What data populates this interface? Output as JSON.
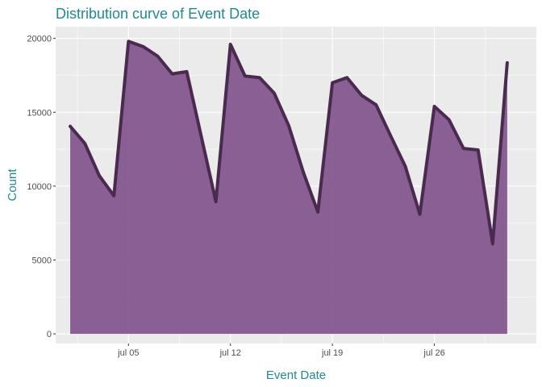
{
  "chart_data": {
    "type": "area",
    "title": "Distribution curve of Event Date",
    "xlabel": "Event Date",
    "ylabel": "Count",
    "x_tick_labels": [
      {
        "date": "2020-07-05",
        "label": "jul 05"
      },
      {
        "date": "2020-07-12",
        "label": "jul 12"
      },
      {
        "date": "2020-07-19",
        "label": "jul 19"
      },
      {
        "date": "2020-07-26",
        "label": "jul 26"
      }
    ],
    "y_ticks": [
      0,
      5000,
      10000,
      15000,
      20000
    ],
    "y_tick_labels": [
      "0",
      "5000",
      "10000",
      "15000",
      "20000"
    ],
    "xlim": [
      "2020-06-30",
      "2020-08-02"
    ],
    "ylim": [
      -650,
      20800
    ],
    "grid": true,
    "series": [
      {
        "x": [
          "2020-07-01",
          "2020-07-02",
          "2020-07-03",
          "2020-07-04",
          "2020-07-05",
          "2020-07-06",
          "2020-07-07",
          "2020-07-08",
          "2020-07-09",
          "2020-07-10",
          "2020-07-11",
          "2020-07-12",
          "2020-07-13",
          "2020-07-14",
          "2020-07-15",
          "2020-07-16",
          "2020-07-17",
          "2020-07-18",
          "2020-07-19",
          "2020-07-20",
          "2020-07-21",
          "2020-07-22",
          "2020-07-23",
          "2020-07-24",
          "2020-07-25",
          "2020-07-26",
          "2020-07-27",
          "2020-07-28",
          "2020-07-29",
          "2020-07-30",
          "2020-07-31"
        ],
        "values": [
          14050,
          12900,
          10700,
          9350,
          19800,
          19450,
          18800,
          17600,
          17750,
          13350,
          8950,
          19600,
          17450,
          17350,
          16300,
          14100,
          10950,
          8250,
          17000,
          17350,
          16150,
          15500,
          13400,
          11350,
          8100,
          15400,
          14500,
          12550,
          12450,
          6100,
          18350
        ]
      }
    ],
    "colors": {
      "fill": "#7b4b87",
      "line": "#4a2a4f",
      "panel_background": "#ebebeb",
      "grid": "#ffffff",
      "title": "#1f8a8f",
      "axis_title": "#1f8a8f",
      "tick_text": "#4d4d4d",
      "tick_mark": "#333333"
    }
  }
}
